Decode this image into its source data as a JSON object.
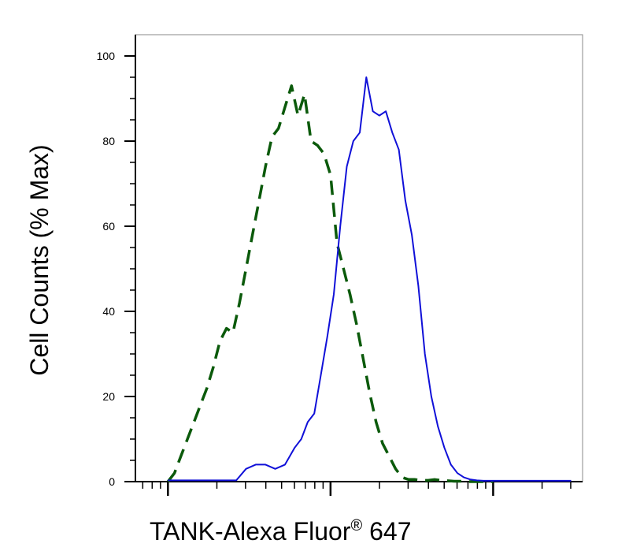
{
  "chart_data": {
    "type": "line",
    "title": "",
    "xlabel": "TANK-Alexa Fluor",
    "xlabel_superscript": "®",
    "xlabel_suffix": " 647",
    "ylabel": "Cell Counts (% Max)",
    "x_scale": "log",
    "x_tick_labels_shown": false,
    "ylim": [
      0,
      105
    ],
    "y_ticks": [
      0,
      20,
      40,
      60,
      80,
      100
    ],
    "grid": false,
    "legend": "none",
    "series": [
      {
        "style": "dashed",
        "color": "#0b5a0b",
        "x": [
          1.0,
          1.04,
          1.08,
          1.12,
          1.16,
          1.2,
          1.24,
          1.28,
          1.32,
          1.36,
          1.4,
          1.44,
          1.48,
          1.52,
          1.56,
          1.6,
          1.64,
          1.68,
          1.72,
          1.76,
          1.8,
          1.84,
          1.88,
          1.92,
          1.96,
          2.0,
          2.04,
          2.08,
          2.12,
          2.16,
          2.2,
          2.24,
          2.28,
          2.32,
          2.36,
          2.4,
          2.44,
          2.48,
          2.52,
          2.56,
          2.6,
          2.64,
          2.68,
          2.72,
          2.76,
          2.8,
          2.84,
          2.88,
          2.92,
          2.96,
          3.0
        ],
        "y": [
          0,
          2,
          6,
          10,
          14,
          18,
          22,
          27,
          33,
          36,
          35,
          42,
          50,
          58,
          66,
          74,
          81,
          83,
          88,
          93,
          86,
          91,
          80,
          79,
          77,
          72,
          56,
          50,
          44,
          37,
          29,
          21,
          14,
          9,
          6,
          3,
          1,
          0.5,
          0.5,
          0.3,
          0.3,
          0.5,
          0.3,
          0.2,
          0.1,
          0.1,
          0,
          0,
          0,
          0,
          0
        ]
      },
      {
        "style": "solid",
        "color": "#1010d8",
        "x": [
          1.0,
          1.06,
          1.12,
          1.18,
          1.24,
          1.3,
          1.36,
          1.42,
          1.48,
          1.54,
          1.6,
          1.66,
          1.72,
          1.78,
          1.82,
          1.86,
          1.9,
          1.94,
          1.98,
          2.02,
          2.06,
          2.1,
          2.14,
          2.18,
          2.22,
          2.26,
          2.3,
          2.34,
          2.38,
          2.42,
          2.46,
          2.5,
          2.54,
          2.58,
          2.62,
          2.66,
          2.7,
          2.74,
          2.78,
          2.82,
          2.86,
          2.9,
          2.94,
          2.98,
          3.02,
          3.08,
          3.14,
          3.2,
          3.26,
          3.34,
          3.42,
          3.48
        ],
        "y": [
          0.3,
          0.3,
          0.3,
          0.3,
          0.3,
          0.3,
          0.3,
          0.3,
          3,
          4,
          4,
          3,
          4,
          8,
          10,
          14,
          16,
          25,
          34,
          44,
          60,
          74,
          80,
          82,
          95,
          87,
          86,
          87,
          82,
          78,
          66,
          58,
          46,
          30,
          20,
          13,
          8,
          4,
          2,
          1,
          0.5,
          0.3,
          0.2,
          0.2,
          0.2,
          0.2,
          0.2,
          0.2,
          0.2,
          0.2,
          0.2,
          0.2
        ]
      }
    ]
  }
}
